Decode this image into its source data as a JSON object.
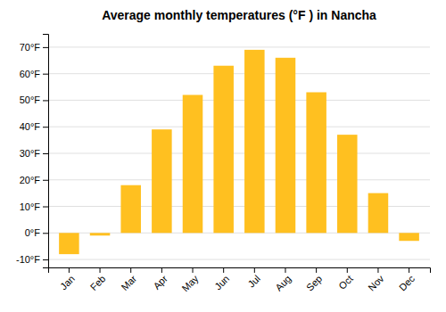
{
  "chart_data": {
    "type": "bar",
    "title": "Average monthly temperatures (°F ) in Nancha",
    "categories": [
      "Jan",
      "Feb",
      "Mar",
      "Apr",
      "May",
      "Jun",
      "Jul",
      "Aug",
      "Sep",
      "Oct",
      "Nov",
      "Dec"
    ],
    "values": [
      -8,
      -1,
      18,
      39,
      52,
      63,
      69,
      66,
      53,
      37,
      15,
      -3
    ],
    "color": "#FFC020",
    "ylim": [
      -13,
      75
    ],
    "yticks": [
      {
        "value": -10,
        "label": "-10°F"
      },
      {
        "value": 0,
        "label": "0°F"
      },
      {
        "value": 10,
        "label": "10°F"
      },
      {
        "value": 20,
        "label": "20°F"
      },
      {
        "value": 30,
        "label": "30°F"
      },
      {
        "value": 40,
        "label": "40°F"
      },
      {
        "value": 50,
        "label": "50°F"
      },
      {
        "value": 60,
        "label": "60°F"
      },
      {
        "value": 70,
        "label": "70°F"
      }
    ],
    "grid": true
  }
}
